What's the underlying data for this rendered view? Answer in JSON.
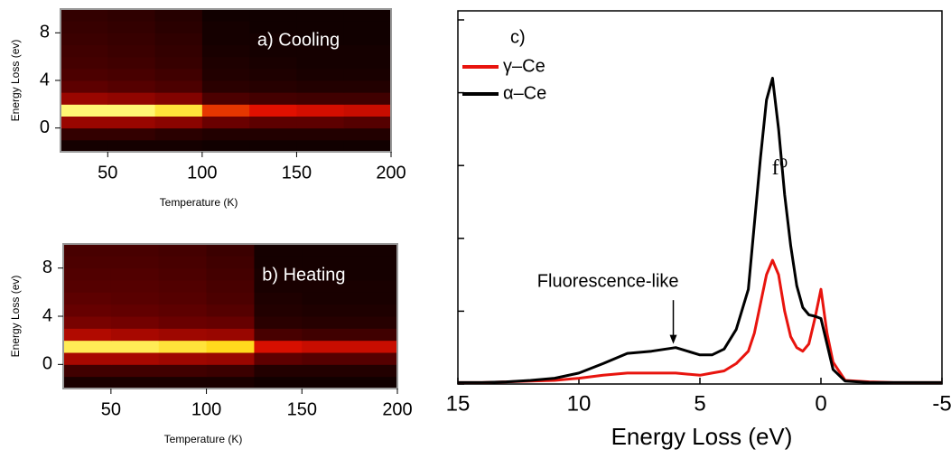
{
  "chart_data": [
    {
      "type": "heatmap",
      "title": "a) Cooling",
      "xlabel": "Temperature (K)",
      "ylabel": "Energy Loss (ev)",
      "xbins": [
        25,
        50,
        75,
        100,
        125,
        150,
        175,
        200
      ],
      "ybins": [
        -2,
        -1,
        0,
        1,
        2,
        3,
        4,
        5,
        6,
        7,
        8,
        9,
        10
      ],
      "z": [
        [
          0.05,
          0.05,
          0.05,
          0.04,
          0.04,
          0.04,
          0.04
        ],
        [
          0.12,
          0.12,
          0.1,
          0.08,
          0.08,
          0.08,
          0.08
        ],
        [
          0.35,
          0.35,
          0.32,
          0.25,
          0.22,
          0.22,
          0.2
        ],
        [
          0.95,
          0.95,
          0.85,
          0.55,
          0.5,
          0.47,
          0.45
        ],
        [
          0.35,
          0.33,
          0.3,
          0.18,
          0.16,
          0.15,
          0.15
        ],
        [
          0.22,
          0.2,
          0.18,
          0.1,
          0.09,
          0.08,
          0.08
        ],
        [
          0.18,
          0.17,
          0.15,
          0.08,
          0.07,
          0.06,
          0.06
        ],
        [
          0.16,
          0.15,
          0.13,
          0.07,
          0.06,
          0.05,
          0.05
        ],
        [
          0.15,
          0.14,
          0.12,
          0.06,
          0.05,
          0.05,
          0.05
        ],
        [
          0.14,
          0.13,
          0.11,
          0.05,
          0.05,
          0.04,
          0.04
        ],
        [
          0.13,
          0.12,
          0.1,
          0.05,
          0.04,
          0.04,
          0.04
        ],
        [
          0.12,
          0.11,
          0.09,
          0.04,
          0.04,
          0.04,
          0.04
        ]
      ],
      "colormap": [
        "#000000",
        "#6a0000",
        "#e01000",
        "#ffd000",
        "#ffff90"
      ],
      "xlim": [
        25,
        200
      ],
      "ylim": [
        -2,
        10
      ],
      "xticks": [
        50,
        100,
        150,
        200
      ],
      "yticks": [
        0,
        4,
        8
      ]
    },
    {
      "type": "heatmap",
      "title": "b) Heating",
      "xlabel": "Temperature (K)",
      "ylabel": "Energy Loss (ev)",
      "xbins": [
        25,
        50,
        75,
        100,
        125,
        150,
        175,
        200
      ],
      "ybins": [
        -2,
        -1,
        0,
        1,
        2,
        3,
        4,
        5,
        6,
        7,
        8,
        9,
        10
      ],
      "z": [
        [
          0.06,
          0.06,
          0.06,
          0.06,
          0.04,
          0.04,
          0.04
        ],
        [
          0.15,
          0.15,
          0.15,
          0.14,
          0.08,
          0.08,
          0.08
        ],
        [
          0.38,
          0.38,
          0.36,
          0.35,
          0.22,
          0.2,
          0.2
        ],
        [
          0.9,
          0.9,
          0.85,
          0.8,
          0.48,
          0.45,
          0.45
        ],
        [
          0.4,
          0.38,
          0.36,
          0.35,
          0.17,
          0.15,
          0.15
        ],
        [
          0.28,
          0.27,
          0.25,
          0.24,
          0.1,
          0.09,
          0.09
        ],
        [
          0.24,
          0.23,
          0.22,
          0.2,
          0.08,
          0.07,
          0.07
        ],
        [
          0.22,
          0.21,
          0.2,
          0.18,
          0.07,
          0.06,
          0.06
        ],
        [
          0.2,
          0.2,
          0.19,
          0.17,
          0.06,
          0.06,
          0.06
        ],
        [
          0.19,
          0.19,
          0.18,
          0.16,
          0.06,
          0.05,
          0.05
        ],
        [
          0.18,
          0.18,
          0.17,
          0.15,
          0.05,
          0.05,
          0.05
        ],
        [
          0.17,
          0.17,
          0.16,
          0.14,
          0.05,
          0.05,
          0.05
        ]
      ],
      "colormap": [
        "#000000",
        "#6a0000",
        "#e01000",
        "#ffd000",
        "#ffff90"
      ],
      "xlim": [
        25,
        200
      ],
      "ylim": [
        -2,
        10
      ],
      "xticks": [
        50,
        100,
        150,
        200
      ],
      "yticks": [
        0,
        4,
        8
      ]
    },
    {
      "type": "line",
      "title": "c)",
      "xlabel": "Energy Loss (eV)",
      "annotations": [
        "f⁰",
        "Fluorescence-like"
      ],
      "x": [
        15,
        14,
        13,
        12,
        11,
        10,
        9,
        8,
        7,
        6,
        5,
        4.5,
        4,
        3.5,
        3,
        2.75,
        2.5,
        2.25,
        2,
        1.75,
        1.5,
        1.25,
        1,
        0.75,
        0.5,
        0.25,
        0,
        -0.25,
        -0.5,
        -1,
        -2,
        -3,
        -4,
        -5
      ],
      "series": [
        {
          "name": "γ–Ce",
          "color": "#e8140e",
          "values": [
            0.02,
            0.02,
            0.03,
            0.04,
            0.05,
            0.08,
            0.12,
            0.15,
            0.15,
            0.15,
            0.12,
            0.15,
            0.18,
            0.28,
            0.45,
            0.7,
            1.1,
            1.5,
            1.7,
            1.5,
            1.0,
            0.65,
            0.5,
            0.45,
            0.55,
            0.9,
            1.3,
            0.7,
            0.3,
            0.05,
            0.03,
            0.02,
            0.02,
            0.02
          ]
        },
        {
          "name": "α–Ce",
          "color": "#000000",
          "values": [
            0.02,
            0.02,
            0.03,
            0.05,
            0.08,
            0.15,
            0.28,
            0.42,
            0.45,
            0.5,
            0.4,
            0.4,
            0.48,
            0.75,
            1.3,
            2.2,
            3.1,
            3.9,
            4.2,
            3.5,
            2.6,
            1.9,
            1.35,
            1.05,
            0.95,
            0.93,
            0.9,
            0.55,
            0.2,
            0.04,
            0.02,
            0.02,
            0.02,
            0.02
          ]
        }
      ],
      "xlim": [
        15,
        -5
      ],
      "ylim": [
        0,
        5
      ],
      "xticks": [
        15,
        10,
        5,
        0,
        -5
      ],
      "yticks": [
        0,
        1,
        2,
        3,
        4,
        5
      ],
      "ytick_labels": false
    }
  ]
}
